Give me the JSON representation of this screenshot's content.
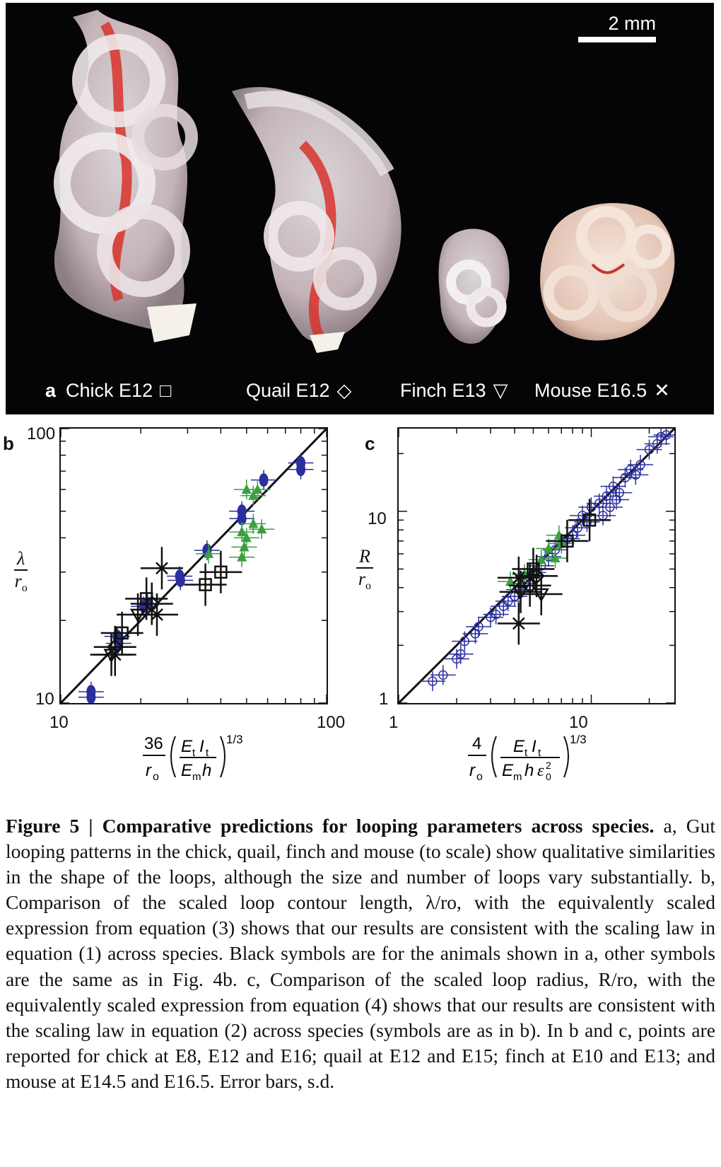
{
  "panel_a": {
    "letter": "a",
    "scale_bar_label": "2 mm",
    "specimens": [
      {
        "label": "Chick E12",
        "symbol": "□"
      },
      {
        "label": "Quail E12",
        "symbol": "◇"
      },
      {
        "label": "Finch E13",
        "symbol": "▽"
      },
      {
        "label": "Mouse E16.5",
        "symbol": "✕"
      }
    ]
  },
  "panel_b": {
    "letter": "b",
    "x_ticks": [
      "10",
      "100"
    ],
    "y_ticks": [
      "10",
      "100"
    ],
    "ylabel_num": "λ",
    "ylabel_den": "r",
    "ylabel_den_sub": "o",
    "xlabel_expr": "36/r_o (E_t I_t / E_m h)^(1/3)",
    "scale": "log-log",
    "xlim": [
      10,
      100
    ],
    "ylim": [
      10,
      100
    ]
  },
  "panel_c": {
    "letter": "c",
    "x_ticks": [
      "1",
      "10"
    ],
    "y_ticks": [
      "1",
      "10"
    ],
    "ylabel_num": "R",
    "ylabel_den": "r",
    "ylabel_den_sub": "o",
    "xlabel_expr": "4/r_o (E_t I_t / E_m h ε_0^2)^(1/3)",
    "scale": "log-log",
    "xlim": [
      1,
      27
    ],
    "ylim": [
      1,
      27
    ]
  },
  "chart_data": [
    {
      "type": "scatter",
      "panel": "b",
      "xlim": [
        10,
        100
      ],
      "ylim": [
        10,
        100
      ],
      "log_x": true,
      "log_y": true,
      "reference_line": "y = x",
      "series": [
        {
          "symbol": "blue-circle",
          "color": "#2b2f9e",
          "points": [
            [
              13.0,
              11.0
            ],
            [
              13.0,
              10.5
            ],
            [
              16.3,
              17.5
            ],
            [
              16.5,
              16.5
            ],
            [
              20.5,
              22.5
            ],
            [
              21.2,
              23.0
            ],
            [
              28.0,
              29.0
            ],
            [
              28.2,
              28.0
            ],
            [
              35.5,
              36.0
            ],
            [
              48.0,
              50.0
            ],
            [
              48.0,
              47.0
            ],
            [
              58.0,
              65.0
            ],
            [
              80.0,
              75.0
            ],
            [
              80.0,
              71.0
            ]
          ]
        },
        {
          "symbol": "green-triangle",
          "color": "#3aa040",
          "points": [
            [
              36.0,
              35.0
            ],
            [
              48.0,
              42.0
            ],
            [
              50.0,
              40.0
            ],
            [
              49.0,
              37.0
            ],
            [
              50.0,
              60.0
            ],
            [
              53.0,
              57.0
            ],
            [
              55.0,
              60.0
            ],
            [
              53.0,
              45.0
            ],
            [
              57.0,
              43.0
            ],
            [
              48.0,
              34.0
            ]
          ]
        },
        {
          "symbol": "black-square",
          "color": "#111111",
          "points": [
            [
              21.0,
              24.0
            ],
            [
              35.0,
              27.0
            ],
            [
              40.0,
              30.0
            ],
            [
              17.0,
              18.0
            ]
          ]
        },
        {
          "symbol": "black-diamond",
          "color": "#111111",
          "points": [
            [
              22.0,
              23.0
            ],
            [
              16.0,
              16.0
            ]
          ]
        },
        {
          "symbol": "black-triangle-down",
          "color": "#111111",
          "points": [
            [
              19.5,
              21.0
            ],
            [
              15.5,
              15.0
            ]
          ]
        },
        {
          "symbol": "black-cross",
          "color": "#111111",
          "points": [
            [
              24.0,
              31.0
            ],
            [
              23.0,
              21.0
            ],
            [
              16.0,
              15.0
            ]
          ]
        }
      ]
    },
    {
      "type": "scatter",
      "panel": "c",
      "xlim": [
        1,
        27
      ],
      "ylim": [
        1,
        27
      ],
      "log_x": true,
      "log_y": true,
      "reference_line": "y = x",
      "series": [
        {
          "symbol": "blue-open-circle",
          "color": "#2b2f9e",
          "points": [
            [
              1.5,
              1.3
            ],
            [
              1.7,
              1.4
            ],
            [
              2.0,
              1.7
            ],
            [
              2.1,
              1.8
            ],
            [
              2.2,
              2.1
            ],
            [
              2.5,
              2.3
            ],
            [
              2.6,
              2.5
            ],
            [
              3.0,
              2.8
            ],
            [
              3.2,
              2.9
            ],
            [
              3.5,
              3.2
            ],
            [
              3.7,
              3.4
            ],
            [
              4.0,
              3.6
            ],
            [
              4.2,
              3.9
            ],
            [
              4.5,
              4.2
            ],
            [
              5.0,
              4.8
            ],
            [
              5.5,
              5.2
            ],
            [
              6.0,
              5.8
            ],
            [
              6.5,
              6.3
            ],
            [
              7.0,
              6.8
            ],
            [
              7.5,
              7.2
            ],
            [
              8.0,
              7.5
            ],
            [
              8.5,
              8.2
            ],
            [
              9.0,
              9.5
            ],
            [
              9.5,
              8.8
            ],
            [
              10.0,
              10.5
            ],
            [
              11.0,
              11.0
            ],
            [
              12.0,
              12.0
            ],
            [
              13.0,
              13.5
            ],
            [
              14.0,
              12.5
            ],
            [
              15.0,
              15.0
            ],
            [
              16.0,
              16.5
            ],
            [
              17.0,
              15.5
            ],
            [
              18.0,
              17.5
            ],
            [
              20.0,
              21.0
            ],
            [
              22.0,
              22.5
            ],
            [
              23.0,
              24.5
            ],
            [
              24.5,
              25.0
            ],
            [
              12.5,
              10.5
            ],
            [
              13.5,
              11.5
            ],
            [
              11.5,
              9.5
            ]
          ]
        },
        {
          "symbol": "green-triangle",
          "color": "#3aa040",
          "points": [
            [
              4.5,
              4.7
            ],
            [
              5.5,
              5.6
            ],
            [
              6.0,
              6.4
            ],
            [
              6.5,
              5.7
            ],
            [
              6.8,
              7.5
            ],
            [
              7.0,
              6.8
            ],
            [
              5.2,
              5.0
            ],
            [
              3.8,
              4.3
            ]
          ]
        },
        {
          "symbol": "black-square",
          "color": "#111111",
          "points": [
            [
              5.0,
              5.0
            ],
            [
              7.5,
              7.0
            ],
            [
              9.8,
              9.0
            ]
          ]
        },
        {
          "symbol": "black-diamond",
          "color": "#111111",
          "points": [
            [
              5.2,
              4.6
            ],
            [
              4.8,
              4.1
            ]
          ]
        },
        {
          "symbol": "black-triangle-down",
          "color": "#111111",
          "points": [
            [
              5.5,
              3.7
            ],
            [
              4.3,
              3.8
            ]
          ]
        },
        {
          "symbol": "black-cross",
          "color": "#111111",
          "points": [
            [
              4.2,
              4.5
            ],
            [
              4.2,
              2.6
            ]
          ]
        }
      ]
    }
  ],
  "caption": {
    "title": "Figure 5 | Comparative predictions for looping parameters across species.",
    "body": "a, Gut looping patterns in the chick, quail, finch and mouse (to scale) show qualitative similarities in the shape of the loops, although the size and number of loops vary substantially. b, Comparison of the scaled loop contour length, λ/ro, with the equivalently scaled expression from equation (3) shows that our results are consistent with the scaling law in equation (1) across species. Black symbols are for the animals shown in a, other symbols are the same as in Fig. 4b. c, Comparison of the scaled loop radius, R/ro, with the equivalently scaled expression from equation (4) shows that our results are consistent with the scaling law in equation (2) across species (symbols are as in b). In b and c, points are reported for chick at E8, E12 and E16; quail at E12 and E15; finch at E10 and E13; and mouse at E14.5 and E16.5. Error bars, s.d."
  }
}
